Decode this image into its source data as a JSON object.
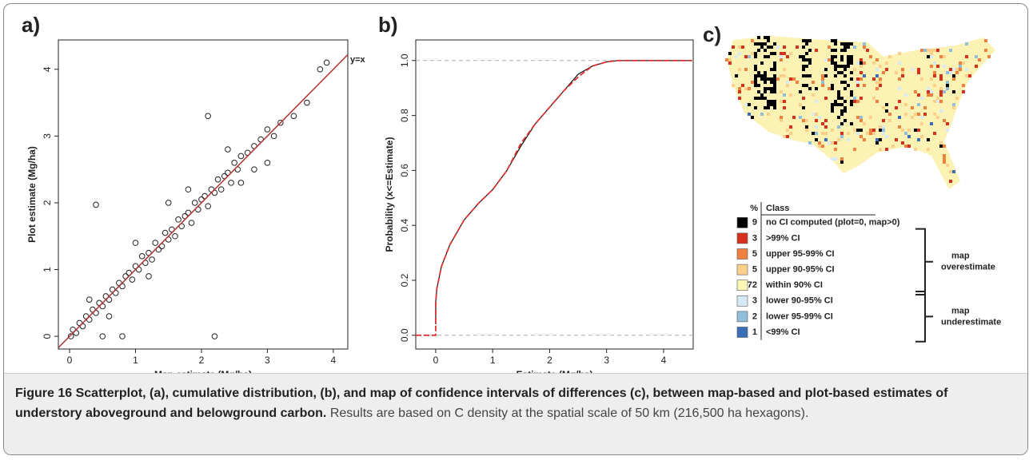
{
  "chart_data": [
    {
      "type": "scatter",
      "panel_label": "a)",
      "annotation": "y=x",
      "x_label": "Map estimate (Mg/ha)",
      "y_label": "Plot estimate (Mg/ha)",
      "color": "#222222",
      "line_color": "#b03a3a",
      "xlim": [
        -0.17,
        4.22
      ],
      "ylim": [
        -0.19,
        4.44
      ],
      "xticks": [
        0,
        1,
        2,
        3,
        4
      ],
      "yticks": [
        0,
        1,
        2,
        3,
        4
      ],
      "x": [
        0.02,
        0.05,
        0.1,
        0.15,
        0.2,
        0.25,
        0.3,
        0.35,
        0.4,
        0.45,
        0.5,
        0.55,
        0.6,
        0.65,
        0.7,
        0.75,
        0.8,
        0.85,
        0.9,
        0.95,
        1.0,
        1.05,
        1.1,
        1.15,
        1.2,
        1.25,
        1.3,
        1.35,
        1.4,
        1.45,
        1.5,
        1.55,
        1.6,
        1.65,
        1.7,
        1.75,
        1.8,
        1.85,
        1.9,
        1.95,
        2.0,
        2.05,
        2.1,
        2.15,
        2.2,
        2.25,
        2.3,
        2.35,
        2.4,
        2.45,
        2.5,
        2.55,
        2.6,
        2.7,
        2.8,
        2.9,
        3.0,
        3.1,
        3.2,
        3.4,
        3.6,
        3.8,
        3.9,
        0.4,
        2.2,
        2.1,
        0.5,
        0.8,
        1.0,
        1.5,
        2.6,
        3.0,
        0.3,
        0.6,
        1.2,
        1.8,
        2.4,
        2.8
      ],
      "values": [
        0.0,
        0.1,
        0.05,
        0.2,
        0.15,
        0.3,
        0.25,
        0.4,
        0.35,
        0.5,
        0.45,
        0.6,
        0.55,
        0.7,
        0.65,
        0.8,
        0.75,
        0.9,
        0.95,
        0.85,
        1.05,
        1.0,
        1.2,
        1.1,
        1.25,
        1.15,
        1.4,
        1.3,
        1.35,
        1.55,
        1.45,
        1.6,
        1.5,
        1.75,
        1.65,
        1.8,
        1.85,
        1.7,
        2.0,
        1.9,
        2.05,
        2.1,
        1.95,
        2.2,
        2.15,
        2.35,
        2.2,
        2.4,
        2.45,
        2.3,
        2.6,
        2.5,
        2.7,
        2.75,
        2.85,
        2.95,
        3.1,
        3.0,
        3.2,
        3.3,
        3.5,
        4.0,
        4.1,
        1.97,
        0.0,
        3.3,
        0.0,
        0.0,
        1.4,
        2.0,
        2.3,
        2.6,
        0.55,
        0.3,
        0.9,
        2.2,
        2.8,
        2.5
      ]
    },
    {
      "type": "line",
      "panel_label": "b)",
      "x_label": "Estimate (Mg/ha)",
      "y_label": "Probability (x<=Estimate)",
      "xlim": [
        -0.35,
        4.52
      ],
      "ylim": [
        -0.05,
        1.075
      ],
      "xticks": [
        0,
        1,
        2,
        3,
        4
      ],
      "yticks": [
        {
          "value": 0,
          "label": "0.0"
        },
        {
          "value": 0.2,
          "label": "0.2"
        },
        {
          "value": 0.4,
          "label": "0.4"
        },
        {
          "value": 0.6,
          "label": "0.6"
        },
        {
          "value": 0.8,
          "label": "0.8"
        },
        {
          "value": 1,
          "label": "1.0"
        }
      ],
      "reference_lines": [
        0,
        1
      ],
      "series": [
        {
          "color": "#111111",
          "x": [
            0,
            0,
            0.02,
            0.1,
            0.25,
            0.5,
            0.75,
            1.0,
            1.25,
            1.5,
            1.75,
            2.0,
            2.25,
            2.5,
            2.75,
            3.0,
            3.2,
            3.5,
            4.5
          ],
          "values": [
            0.04,
            0.12,
            0.17,
            0.25,
            0.33,
            0.42,
            0.48,
            0.53,
            0.6,
            0.69,
            0.77,
            0.83,
            0.89,
            0.95,
            0.98,
            0.995,
            1.0,
            1.0,
            1.0
          ]
        },
        {
          "color": "#e03030",
          "x": [
            -0.35,
            0,
            0,
            0.02,
            0.1,
            0.25,
            0.5,
            0.75,
            1.0,
            1.25,
            1.5,
            1.75,
            2.0,
            2.25,
            2.5,
            2.75,
            3.0,
            3.2,
            3.5,
            4.5
          ],
          "values": [
            0,
            0,
            0.12,
            0.17,
            0.25,
            0.33,
            0.42,
            0.48,
            0.53,
            0.6,
            0.7,
            0.77,
            0.83,
            0.89,
            0.94,
            0.98,
            0.995,
            1.0,
            1.0,
            1.0
          ]
        }
      ]
    }
  ],
  "map": {
    "panel_label": "c)",
    "legend": {
      "headers": [
        "%",
        "Class"
      ],
      "rows": [
        {
          "percent": 9,
          "label": "no CI computed (plot=0, map>0)",
          "color": "#000000"
        },
        {
          "percent": 3,
          "label": ">99% CI",
          "color": "#d7301f"
        },
        {
          "percent": 5,
          "label": "upper 95-99% CI",
          "color": "#f08040"
        },
        {
          "percent": 5,
          "label": "upper 90-95% CI",
          "color": "#fcd08a"
        },
        {
          "percent": 72,
          "label": "within 90% CI",
          "color": "#fdf5b4"
        },
        {
          "percent": 3,
          "label": "lower 90-95% CI",
          "color": "#d6eaf5"
        },
        {
          "percent": 2,
          "label": "lower 95-99% CI",
          "color": "#91bfdb"
        },
        {
          "percent": 1,
          "label": "<99% CI",
          "color": "#3a6fb8"
        }
      ],
      "groups": [
        {
          "lines": [
            "map",
            "overestimate"
          ]
        },
        {
          "lines": [
            "map",
            "underestimate"
          ]
        }
      ]
    }
  },
  "caption": {
    "label": "Figure 16",
    "title": "Scatterplot, (a), cumulative distribution, (b), and map of confidence intervals of differences (c), between map-based and plot-based estimates of understory aboveground and belowground carbon.",
    "text": "Results are based on C density at the spatial scale of 50 km (216,500 ha hexagons)."
  }
}
